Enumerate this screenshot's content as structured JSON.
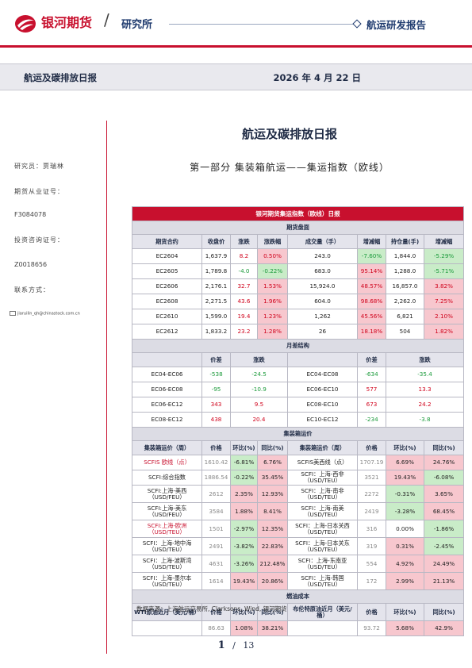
{
  "header": {
    "brand": "银河期货",
    "department": "研究所",
    "report_type": "航运研发报告",
    "accent": "#c8102e",
    "navy": "#1e3a6e"
  },
  "band": {
    "title": "航运及碳排放日报",
    "date": "2026 年 4 月 22 日"
  },
  "sidebar": {
    "analyst": "研究员：贾瑞林",
    "license_label": "期货从业证号：",
    "license": "F3084078",
    "advisory_label": "投资咨询证号：",
    "advisory": "Z0018656",
    "contact_label": "联系方式：",
    "email": "jiaruilin_qh@chinastock.com.cn"
  },
  "title": "航运及碳排放日报",
  "subtitle": "第一部分    集装箱航运——集运指数（欧线）",
  "table": {
    "title": "银河期货集运指数（欧线）日报",
    "sec_futures": "期货盘面",
    "futures_cols": [
      "期货合约",
      "收盘价",
      "涨跌",
      "涨跌幅",
      "成交量（手）",
      "增减幅",
      "持仓量(手)",
      "增减幅"
    ],
    "futures": [
      {
        "c": "EC2604",
        "p": "1,637.9",
        "chg": "8.2",
        "pct": "0.50%",
        "vol": "243.0",
        "vpct": "-7.60%",
        "oi": "1,844.0",
        "oipct": "-5.29%"
      },
      {
        "c": "EC2605",
        "p": "1,789.8",
        "chg": "-4.0",
        "pct": "-0.22%",
        "vol": "683.0",
        "vpct": "95.14%",
        "oi": "1,288.0",
        "oipct": "-5.71%"
      },
      {
        "c": "EC2606",
        "p": "2,176.1",
        "chg": "32.7",
        "pct": "1.53%",
        "vol": "15,924.0",
        "vpct": "48.57%",
        "oi": "16,857.0",
        "oipct": "3.82%"
      },
      {
        "c": "EC2608",
        "p": "2,271.5",
        "chg": "43.6",
        "pct": "1.96%",
        "vol": "604.0",
        "vpct": "98.68%",
        "oi": "2,262.0",
        "oipct": "7.25%"
      },
      {
        "c": "EC2610",
        "p": "1,599.0",
        "chg": "19.4",
        "pct": "1.23%",
        "vol": "1,262",
        "vpct": "45.56%",
        "oi": "6,821",
        "oipct": "2.10%"
      },
      {
        "c": "EC2612",
        "p": "1,833.2",
        "chg": "23.2",
        "pct": "1.28%",
        "vol": "26",
        "vpct": "18.18%",
        "oi": "504",
        "oipct": "1.82%"
      }
    ],
    "sec_spread": "月差结构",
    "spread_cols": [
      "价差",
      "涨跌",
      "价差",
      "涨跌"
    ],
    "spreads": [
      {
        "a": "EC04-EC06",
        "av": "-538",
        "ac": "-24.5",
        "b": "EC04-EC08",
        "bv": "-634",
        "bc": "-35.4"
      },
      {
        "a": "EC06-EC08",
        "av": "-95",
        "ac": "-10.9",
        "b": "EC06-EC10",
        "bv": "577",
        "bc": "13.3"
      },
      {
        "a": "EC06-EC12",
        "av": "343",
        "ac": "9.5",
        "b": "EC08-EC10",
        "bv": "673",
        "bc": "24.2"
      },
      {
        "a": "EC08-EC12",
        "av": "438",
        "ac": "20.4",
        "b": "EC10-EC12",
        "bv": "-234",
        "bc": "-3.8"
      }
    ],
    "sec_freight": "集装箱运价",
    "freight_cols": [
      "集装箱运价（周）",
      "价格",
      "环比(%)",
      "同比(%)",
      "集装箱运价（周）",
      "价格",
      "环比(%)",
      "同比(%)"
    ],
    "freight": [
      {
        "a": "SCFIS 欧线（点）",
        "ap": "1610.42",
        "aw": "-6.81%",
        "ay": "6.76%",
        "b": "SCFIS美西线（点）",
        "bp": "1707.19",
        "bw": "6.69%",
        "by": "24.76%"
      },
      {
        "a": "SCFI:综合指数",
        "ap": "1886.54",
        "aw": "-0.22%",
        "ay": "35.45%",
        "b": "SCFI：上海-西非（USD/TEU）",
        "bp": "3521",
        "bw": "19.43%",
        "by": "-6.08%"
      },
      {
        "a": "SCFI:上海-美西（USD/FEU）",
        "ap": "2612",
        "aw": "2.35%",
        "ay": "12.93%",
        "b": "SCFI：上海-南非（USD/TEU）",
        "bp": "2272",
        "bw": "-0.31%",
        "by": "3.65%"
      },
      {
        "a": "SCFI:上海-美东（USD/FEU）",
        "ap": "3584",
        "aw": "1.88%",
        "ay": "8.41%",
        "b": "SCFI：上海-南美（USD/TEU）",
        "bp": "2419",
        "bw": "-3.28%",
        "by": "68.45%"
      },
      {
        "a": "SCFI:上海-欧洲（USD/TEU）",
        "ap": "1501",
        "aw": "-2.97%",
        "ay": "12.35%",
        "b": "SCFI：上海-日本关西（USD/TEU）",
        "bp": "316",
        "bw": "0.00%",
        "by": "-1.86%"
      },
      {
        "a": "SCFI：上海-地中海（USD/TEU）",
        "ap": "2491",
        "aw": "-3.82%",
        "ay": "22.83%",
        "b": "SCFI：上海-日本关东（USD/TEU）",
        "bp": "319",
        "bw": "0.31%",
        "by": "-2.45%"
      },
      {
        "a": "SCFI：上海-波斯湾（USD/TEU）",
        "ap": "4631",
        "aw": "-3.26%",
        "ay": "212.48%",
        "b": "SCFI：上海-东南亚（USD/TEU）",
        "bp": "554",
        "bw": "4.92%",
        "by": "24.49%"
      },
      {
        "a": "SCFI：上海-墨尔本（USD/TEU）",
        "ap": "1614",
        "aw": "19.43%",
        "ay": "20.86%",
        "b": "SCFI：上海-韩国（USD/TEU）",
        "bp": "172",
        "bw": "2.99%",
        "by": "21.13%"
      }
    ],
    "sec_fuel": "燃油成本",
    "fuel_cols": [
      "WTI原油近月（美元/桶）",
      "价格",
      "环比(%)",
      "同比(%)",
      "布伦特原油近月（美元/桶）",
      "价格",
      "环比(%)",
      "同比(%)"
    ],
    "fuel": {
      "ap": "86.63",
      "aw": "1.08%",
      "ay": "38.21%",
      "bp": "93.72",
      "bw": "5.68%",
      "by": "42.9%"
    }
  },
  "source": "数据来源：上海航运交易所, Clarksons, Wind, 银河期货",
  "pager": {
    "current": "1",
    "sep": "/",
    "total": "13"
  }
}
